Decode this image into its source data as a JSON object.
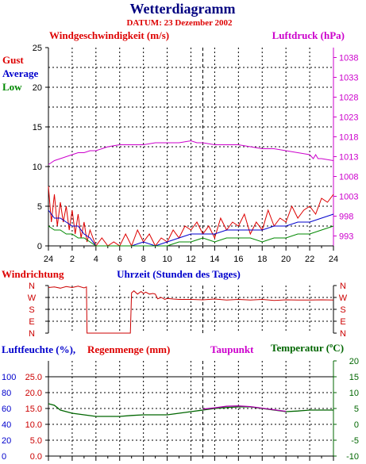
{
  "header": {
    "title": "Wetterdiagramm",
    "date": "DATUM: 23 Dezember 2002"
  },
  "colors": {
    "gust": "#dd0000",
    "average": "#0000cc",
    "low": "#008800",
    "pressure": "#cc00cc",
    "wind_dir": "#cc0000",
    "humidity": "#008800",
    "dewpoint": "#aa00aa",
    "temperature": "#006600",
    "axis": "#000000",
    "grid": "#000000"
  },
  "chart_data": [
    {
      "type": "line",
      "name": "wind",
      "title_left": "Windgeschwindigkeit (m/s)",
      "title_right": "Luftdruck (hPa)",
      "xlabel": "Uhrzeit (Stunden des Tages)",
      "x_ticks": [
        "24",
        "2",
        "4",
        "6",
        "8",
        "10",
        "12",
        "14",
        "16",
        "18",
        "20",
        "22",
        "24"
      ],
      "x_range": [
        0,
        24
      ],
      "y_left_ticks": [
        "0",
        "5",
        "10",
        "15",
        "20",
        "25"
      ],
      "y_left_range": [
        0,
        25
      ],
      "y_right_ticks": [
        "993",
        "998",
        "1003",
        "1008",
        "1013",
        "1018",
        "1023",
        "1028",
        "1033",
        "1038"
      ],
      "y_right_range": [
        990.5,
        1040.5
      ],
      "grid": true,
      "legend": [
        "Gust",
        "Average",
        "Low"
      ],
      "series": [
        {
          "name": "Gust",
          "axis": "left",
          "x": [
            0,
            0.25,
            0.5,
            0.75,
            1.0,
            1.25,
            1.5,
            1.75,
            2.0,
            2.25,
            2.5,
            2.75,
            3.0,
            3.25,
            3.5,
            3.75,
            4.0,
            4.5,
            5.0,
            5.5,
            6.0,
            6.5,
            7.0,
            7.5,
            8.0,
            8.5,
            9.0,
            9.5,
            10.0,
            10.5,
            11.0,
            11.5,
            12.0,
            12.5,
            13.0,
            13.5,
            14.0,
            14.5,
            15.0,
            15.5,
            16.0,
            16.5,
            17.0,
            17.5,
            18.0,
            18.5,
            19.0,
            19.5,
            20.0,
            20.5,
            21.0,
            21.5,
            22.0,
            22.5,
            23.0,
            23.5,
            24.0
          ],
          "values": [
            7.5,
            3.0,
            6.5,
            2.5,
            5.5,
            3.0,
            5.0,
            2.0,
            4.5,
            1.5,
            4.0,
            1.0,
            3.0,
            0.5,
            2.0,
            1.0,
            0.0,
            1.0,
            0.0,
            0.5,
            0.0,
            1.5,
            0.0,
            2.0,
            0.5,
            1.5,
            0.0,
            1.0,
            0.5,
            2.0,
            1.0,
            2.5,
            2.0,
            3.0,
            1.5,
            2.5,
            1.0,
            3.5,
            2.0,
            3.0,
            2.5,
            4.0,
            1.5,
            3.0,
            2.0,
            4.5,
            2.5,
            3.5,
            3.0,
            5.0,
            3.5,
            4.5,
            5.0,
            4.0,
            6.0,
            5.5,
            6.5
          ]
        },
        {
          "name": "Average",
          "axis": "left",
          "x": [
            0,
            0.5,
            1.0,
            1.5,
            2.0,
            2.5,
            3.0,
            3.5,
            4.0,
            5.0,
            6.0,
            7.0,
            8.0,
            9.0,
            10.0,
            11.0,
            12.0,
            13.0,
            14.0,
            15.0,
            16.0,
            17.0,
            18.0,
            19.0,
            20.0,
            21.0,
            22.0,
            23.0,
            24.0
          ],
          "values": [
            4.5,
            3.5,
            3.5,
            3.0,
            2.5,
            2.5,
            1.5,
            1.0,
            0.0,
            0.0,
            0.0,
            0.0,
            0.5,
            0.0,
            0.5,
            1.0,
            1.5,
            1.5,
            1.5,
            2.0,
            2.0,
            2.0,
            2.0,
            2.5,
            2.5,
            3.0,
            3.0,
            3.5,
            4.0
          ]
        },
        {
          "name": "Low",
          "axis": "left",
          "x": [
            0,
            0.5,
            1.0,
            1.5,
            2.0,
            2.5,
            3.0,
            3.5,
            4.0,
            5.0,
            6.0,
            7.0,
            8.0,
            9.0,
            10.0,
            11.0,
            12.0,
            13.0,
            14.0,
            15.0,
            16.0,
            17.0,
            18.0,
            19.0,
            20.0,
            21.0,
            22.0,
            23.0,
            24.0
          ],
          "values": [
            2.5,
            2.0,
            2.0,
            1.5,
            1.5,
            1.0,
            1.0,
            0.5,
            0.0,
            0.0,
            0.0,
            0.0,
            0.0,
            0.0,
            0.0,
            0.5,
            0.5,
            1.0,
            0.5,
            1.0,
            1.0,
            1.0,
            0.5,
            1.0,
            1.0,
            1.5,
            1.5,
            2.0,
            2.5
          ]
        },
        {
          "name": "Luftdruck",
          "axis": "right",
          "x": [
            0,
            0.5,
            1.0,
            1.5,
            2.0,
            2.5,
            3.0,
            3.5,
            4.0,
            4.5,
            5.0,
            6.0,
            7.0,
            8.0,
            9.0,
            10.0,
            11.0,
            12.0,
            12.5,
            13.0,
            14.0,
            15.0,
            16.0,
            17.0,
            18.0,
            19.0,
            20.0,
            21.0,
            22.0,
            22.3,
            22.5,
            22.7,
            23.0,
            24.0
          ],
          "values": [
            1011.0,
            1012.0,
            1012.5,
            1013.0,
            1013.5,
            1014.0,
            1014.0,
            1014.5,
            1014.5,
            1015.0,
            1015.5,
            1016.0,
            1016.0,
            1016.0,
            1016.5,
            1016.5,
            1016.5,
            1017.0,
            1016.5,
            1016.5,
            1016.0,
            1016.0,
            1016.0,
            1015.5,
            1015.0,
            1015.0,
            1014.5,
            1014.0,
            1013.5,
            1012.5,
            1013.5,
            1012.5,
            1012.5,
            1012.0
          ]
        }
      ]
    },
    {
      "type": "line",
      "name": "wind-direction",
      "title_left": "Windrichtung",
      "y_left_ticks": [
        "N",
        "W",
        "S",
        "E",
        "N"
      ],
      "y_right_ticks": [
        "N",
        "W",
        "S",
        "E",
        "N"
      ],
      "y_range": [
        0,
        360
      ],
      "x_range": [
        0,
        24
      ],
      "grid": true,
      "series": [
        {
          "name": "Windrichtung",
          "x": [
            0,
            0.5,
            1.0,
            1.5,
            2.0,
            2.5,
            3.0,
            3.2,
            3.25,
            4.0,
            5.0,
            6.0,
            6.9,
            7.0,
            7.2,
            7.5,
            7.8,
            8.0,
            8.2,
            8.5,
            8.8,
            9.0,
            9.2,
            9.5,
            9.8,
            10.0,
            10.5,
            11.0,
            12.0,
            13.0,
            14.0,
            15.0,
            16.0,
            17.0,
            18.0,
            19.0,
            20.0,
            21.0,
            22.0,
            23.0,
            24.0
          ],
          "values": [
            345,
            350,
            340,
            352,
            345,
            355,
            342,
            350,
            0,
            0,
            0,
            0,
            0,
            305,
            320,
            295,
            315,
            300,
            310,
            295,
            300,
            295,
            260,
            270,
            255,
            262,
            258,
            255,
            255,
            252,
            258,
            250,
            255,
            250,
            255,
            248,
            252,
            250,
            250,
            252,
            250
          ]
        }
      ]
    },
    {
      "type": "line",
      "name": "humidity-temperature",
      "title_left": "Luftfeuchte (%),",
      "title_rain": "Regenmenge (mm)",
      "title_dew": "Taupunkt",
      "title_right": "Temperatur (ºC)",
      "y_left_ticks": [
        "0",
        "20",
        "40",
        "60",
        "80",
        "100"
      ],
      "y_left_range": [
        0,
        120
      ],
      "y_rain_ticks": [
        "0.0",
        "5.0",
        "10.0",
        "15.0",
        "20.0",
        "25.0"
      ],
      "y_right_ticks": [
        "-10",
        "-5",
        "0",
        "5",
        "10",
        "15",
        "20"
      ],
      "y_right_range": [
        -10,
        20
      ],
      "x_range": [
        0,
        24
      ],
      "grid": true,
      "series": [
        {
          "name": "Temperatur",
          "axis": "right",
          "x": [
            0,
            0.5,
            1.0,
            2.0,
            3.0,
            4.0,
            5.0,
            6.0,
            7.0,
            8.0,
            9.0,
            10.0,
            11.0,
            12.0,
            13.0,
            14.0,
            15.0,
            16.0,
            17.0,
            18.0,
            19.0,
            20.0,
            21.0,
            22.0,
            23.0,
            24.0
          ],
          "values": [
            6.5,
            6.0,
            4.5,
            3.5,
            3.0,
            2.5,
            2.5,
            2.5,
            2.8,
            3.0,
            3.0,
            3.0,
            3.5,
            4.0,
            4.5,
            5.0,
            5.3,
            5.5,
            5.5,
            5.0,
            4.5,
            4.0,
            4.2,
            4.5,
            4.5,
            4.5
          ]
        },
        {
          "name": "Taupunkt",
          "axis": "right",
          "x": [
            13.0,
            14.0,
            15.0,
            16.0,
            17.0,
            18.0,
            19.0,
            20.0
          ],
          "values": [
            4.8,
            5.2,
            5.7,
            5.8,
            5.6,
            5.1,
            4.6,
            4.1
          ]
        }
      ]
    }
  ]
}
